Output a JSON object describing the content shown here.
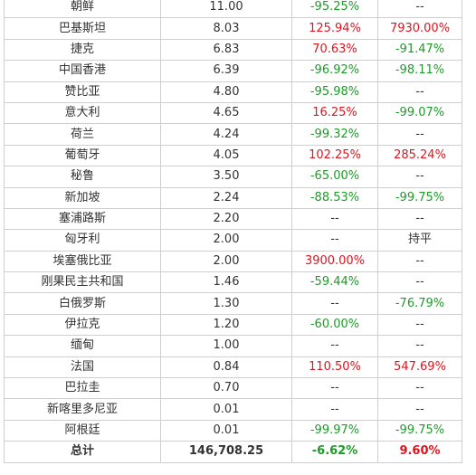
{
  "colors": {
    "increase": "#e0141e",
    "decrease": "#1f9a2a",
    "neutral": "#333333",
    "grid": "#cfcfcf"
  },
  "rows": [
    {
      "country": "朝鲜",
      "value": "11.00",
      "change1": "-95.25%",
      "change2": "--"
    },
    {
      "country": "巴基斯坦",
      "value": "8.03",
      "change1": "125.94%",
      "change2": "7930.00%"
    },
    {
      "country": "捷克",
      "value": "6.83",
      "change1": "70.63%",
      "change2": "-91.47%"
    },
    {
      "country": "中国香港",
      "value": "6.39",
      "change1": "-96.92%",
      "change2": "-98.11%"
    },
    {
      "country": "赞比亚",
      "value": "4.80",
      "change1": "-95.98%",
      "change2": "--"
    },
    {
      "country": "意大利",
      "value": "4.65",
      "change1": "16.25%",
      "change2": "-99.07%"
    },
    {
      "country": "荷兰",
      "value": "4.24",
      "change1": "-99.32%",
      "change2": "--"
    },
    {
      "country": "葡萄牙",
      "value": "4.05",
      "change1": "102.25%",
      "change2": "285.24%"
    },
    {
      "country": "秘鲁",
      "value": "3.50",
      "change1": "-65.00%",
      "change2": "--"
    },
    {
      "country": "新加坡",
      "value": "2.24",
      "change1": "-88.53%",
      "change2": "-99.75%"
    },
    {
      "country": "塞浦路斯",
      "value": "2.20",
      "change1": "--",
      "change2": "--"
    },
    {
      "country": "匈牙利",
      "value": "2.00",
      "change1": "--",
      "change2": "持平"
    },
    {
      "country": "埃塞俄比亚",
      "value": "2.00",
      "change1": "3900.00%",
      "change2": "--"
    },
    {
      "country": "刚果民主共和国",
      "value": "1.46",
      "change1": "-59.44%",
      "change2": "--"
    },
    {
      "country": "白俄罗斯",
      "value": "1.30",
      "change1": "--",
      "change2": "-76.79%"
    },
    {
      "country": "伊拉克",
      "value": "1.20",
      "change1": "-60.00%",
      "change2": "--"
    },
    {
      "country": "缅甸",
      "value": "1.00",
      "change1": "--",
      "change2": "--"
    },
    {
      "country": "法国",
      "value": "0.84",
      "change1": "110.50%",
      "change2": "547.69%"
    },
    {
      "country": "巴拉圭",
      "value": "0.70",
      "change1": "--",
      "change2": "--"
    },
    {
      "country": "新喀里多尼亚",
      "value": "0.01",
      "change1": "--",
      "change2": "--"
    },
    {
      "country": "阿根廷",
      "value": "0.01",
      "change1": "-99.97%",
      "change2": "-99.75%"
    }
  ],
  "total": {
    "label": "总计",
    "value": "146,708.25",
    "change1": "-6.62%",
    "change2": "9.60%"
  }
}
